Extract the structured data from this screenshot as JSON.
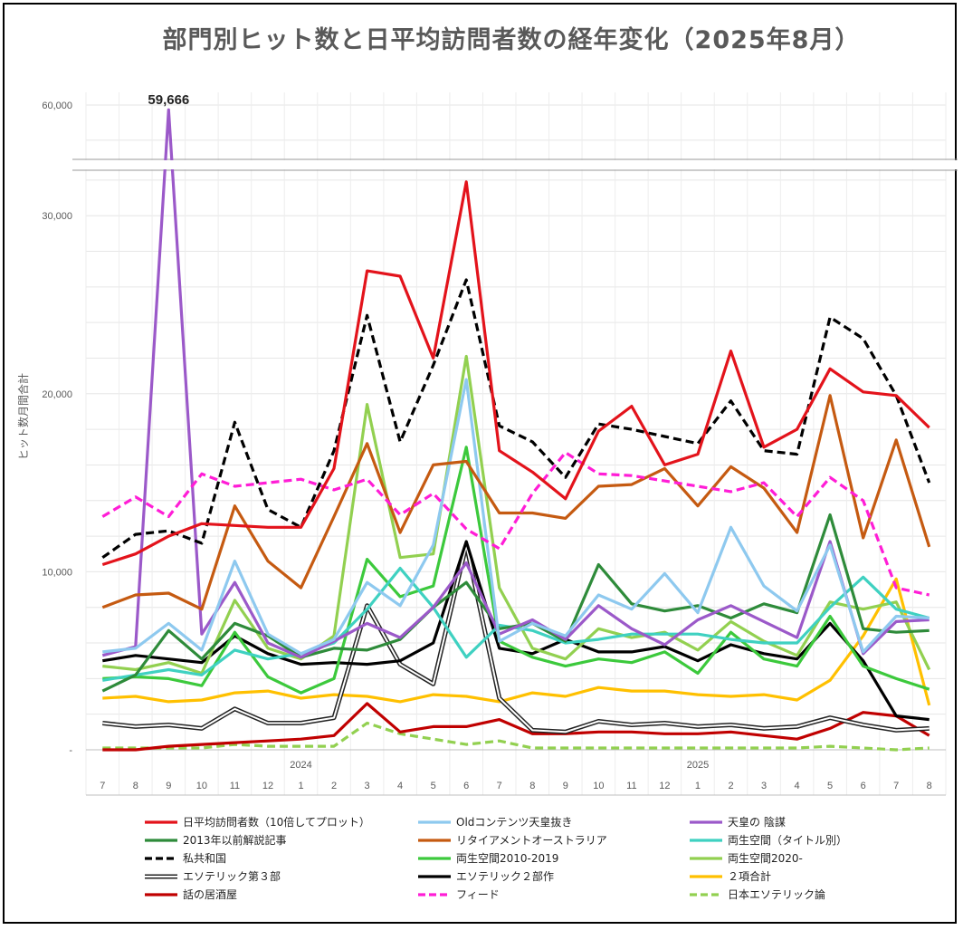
{
  "title": "部門別ヒット数と日平均訪問者数の経年変化（2025年8月）",
  "chart_data": {
    "type": "line",
    "title": "部門別ヒット数と日平均訪問者数の経年変化（2025年8月）",
    "ylabel": "ヒット数月間合計",
    "xlabel": "",
    "x": [
      "7",
      "8",
      "9",
      "10",
      "11",
      "12",
      "1",
      "2",
      "3",
      "4",
      "5",
      "6",
      "7",
      "8",
      "9",
      "10",
      "11",
      "12",
      "1",
      "2",
      "3",
      "4",
      "5",
      "6",
      "7",
      "8"
    ],
    "year_labels": [
      {
        "label": "2024",
        "index": 6
      },
      {
        "label": "2025",
        "index": 18
      }
    ],
    "ylim": [
      0,
      62000
    ],
    "y_break": [
      33000,
      56500
    ],
    "y_ticks": [
      {
        "value": 0,
        "label": "-"
      },
      {
        "value": 10000,
        "label": "10,000"
      },
      {
        "value": 20000,
        "label": "20,000"
      },
      {
        "value": 30000,
        "label": "30,000"
      },
      {
        "value": 60000,
        "label": "60,000"
      }
    ],
    "grid": true,
    "legend_position": "bottom",
    "annotations": [
      {
        "text": "59,666",
        "series": "天皇の 陰謀",
        "index": 2
      }
    ],
    "series": [
      {
        "name": "日平均訪問者数（10倍してプロット）",
        "color": "#e3131b",
        "dash": "solid",
        "values": [
          10400,
          11000,
          12000,
          12700,
          12600,
          12500,
          12500,
          15800,
          26900,
          26600,
          22000,
          31900,
          16800,
          15600,
          14100,
          17900,
          19300,
          16000,
          16600,
          22400,
          17000,
          18000,
          21400,
          20100,
          19900,
          18100
        ]
      },
      {
        "name": "Oldコンテンツ天皇抜き",
        "color": "#8ec9ef",
        "dash": "solid",
        "values": [
          5500,
          5700,
          7100,
          5600,
          10600,
          6500,
          5400,
          6200,
          9400,
          8100,
          11500,
          20800,
          6100,
          7100,
          6400,
          8700,
          7900,
          9900,
          7700,
          12500,
          9200,
          7800,
          11500,
          5500,
          7500,
          7400
        ]
      },
      {
        "name": "天皇の 陰謀",
        "color": "#9b59c9",
        "dash": "solid",
        "values": [
          5300,
          5800,
          59666,
          6500,
          9400,
          6000,
          5200,
          6100,
          7100,
          6300,
          8000,
          10500,
          6500,
          7300,
          6200,
          8100,
          6800,
          5900,
          7300,
          8100,
          7200,
          6300,
          11700,
          5400,
          7200,
          7300
        ]
      },
      {
        "name": "2013年以前解説記事",
        "color": "#2e8b3a",
        "dash": "solid",
        "values": [
          3300,
          4200,
          6700,
          5100,
          7100,
          6400,
          5200,
          5700,
          5600,
          6200,
          8000,
          9400,
          6800,
          7100,
          6100,
          10400,
          8200,
          7800,
          8100,
          7400,
          8200,
          7700,
          13200,
          6800,
          6600,
          6700
        ]
      },
      {
        "name": "リタイアメントオーストラリア",
        "color": "#c55a11",
        "dash": "solid",
        "values": [
          8000,
          8700,
          8800,
          7900,
          13700,
          10600,
          9100,
          13100,
          17200,
          12200,
          16000,
          16200,
          13300,
          13300,
          13000,
          14800,
          14900,
          15800,
          13700,
          15900,
          14700,
          12200,
          19900,
          11900,
          17400,
          11400
        ]
      },
      {
        "name": "両生空間（タイトル別）",
        "color": "#3fd1c1",
        "dash": "solid",
        "values": [
          3900,
          4200,
          4500,
          4200,
          5600,
          5100,
          5400,
          6000,
          7900,
          10200,
          8000,
          5200,
          7000,
          6700,
          6000,
          6200,
          6500,
          6500,
          6500,
          6200,
          6000,
          6000,
          8000,
          9700,
          7900,
          7400
        ]
      },
      {
        "name": "私共和国",
        "color": "#000000",
        "dash": "dashed",
        "values": [
          10800,
          12100,
          12300,
          11600,
          18400,
          13500,
          12500,
          16800,
          24400,
          17300,
          21600,
          26400,
          18200,
          17300,
          15300,
          18300,
          18000,
          17600,
          17200,
          19600,
          16800,
          16600,
          24300,
          23100,
          19900,
          15000
        ]
      },
      {
        "name": "両生空間2010-2019",
        "color": "#3cc93c",
        "dash": "solid",
        "values": [
          4000,
          4100,
          4000,
          3600,
          6600,
          4100,
          3200,
          4000,
          10700,
          8600,
          9200,
          17000,
          6100,
          5200,
          4700,
          5100,
          4900,
          5500,
          4300,
          6600,
          5100,
          4700,
          7500,
          4700,
          4000,
          3400
        ]
      },
      {
        "name": "両生空間2020-",
        "color": "#92d050",
        "dash": "solid",
        "values": [
          4700,
          4500,
          4900,
          4300,
          8400,
          5700,
          5100,
          6400,
          19400,
          10800,
          11000,
          22100,
          9100,
          5700,
          5100,
          6800,
          6300,
          6600,
          5600,
          7200,
          6100,
          5300,
          8300,
          7900,
          8300,
          4500
        ]
      },
      {
        "name": "エソテリック第３部",
        "color": "#222222",
        "dash": "double",
        "values": [
          1500,
          1300,
          1400,
          1200,
          2300,
          1500,
          1500,
          1800,
          8100,
          4800,
          3700,
          11500,
          2900,
          1100,
          1000,
          1600,
          1400,
          1500,
          1300,
          1400,
          1200,
          1300,
          1800,
          1400,
          1100,
          1200
        ]
      },
      {
        "name": "エソテリック２部作",
        "color": "#000000",
        "dash": "solid",
        "values": [
          5000,
          5300,
          5100,
          4900,
          6400,
          5400,
          4800,
          4900,
          4800,
          5000,
          6000,
          11700,
          5700,
          5400,
          6200,
          5500,
          5500,
          5800,
          5000,
          5900,
          5400,
          5100,
          7100,
          5000,
          1900,
          1700
        ]
      },
      {
        "name": "２項合計",
        "color": "#ffc000",
        "dash": "solid",
        "values": [
          2900,
          3000,
          2700,
          2800,
          3200,
          3300,
          2900,
          3100,
          3000,
          2700,
          3100,
          3000,
          2700,
          3200,
          3000,
          3500,
          3300,
          3300,
          3100,
          3000,
          3100,
          2800,
          3900,
          6400,
          9600,
          2500
        ]
      },
      {
        "name": "話の居酒屋",
        "color": "#c00000",
        "dash": "solid",
        "values": [
          0,
          0,
          200,
          300,
          400,
          500,
          600,
          800,
          2600,
          1000,
          1300,
          1300,
          1700,
          900,
          900,
          1000,
          1000,
          900,
          900,
          1000,
          800,
          600,
          1200,
          2100,
          1900,
          800
        ]
      },
      {
        "name": "フィード",
        "color": "#ff1dd6",
        "dash": "dashed",
        "values": [
          13100,
          14200,
          13100,
          15500,
          14800,
          15000,
          15200,
          14600,
          15200,
          13200,
          14400,
          12400,
          11300,
          14400,
          16700,
          15500,
          15400,
          15100,
          14800,
          14500,
          15000,
          13100,
          15300,
          14000,
          9100,
          8700
        ]
      },
      {
        "name": "日本エソテリック論",
        "color": "#92d050",
        "dash": "dashed",
        "values": [
          100,
          100,
          100,
          100,
          300,
          200,
          200,
          200,
          1500,
          900,
          600,
          300,
          500,
          100,
          100,
          100,
          100,
          100,
          100,
          100,
          100,
          100,
          200,
          100,
          0,
          100
        ]
      }
    ]
  }
}
